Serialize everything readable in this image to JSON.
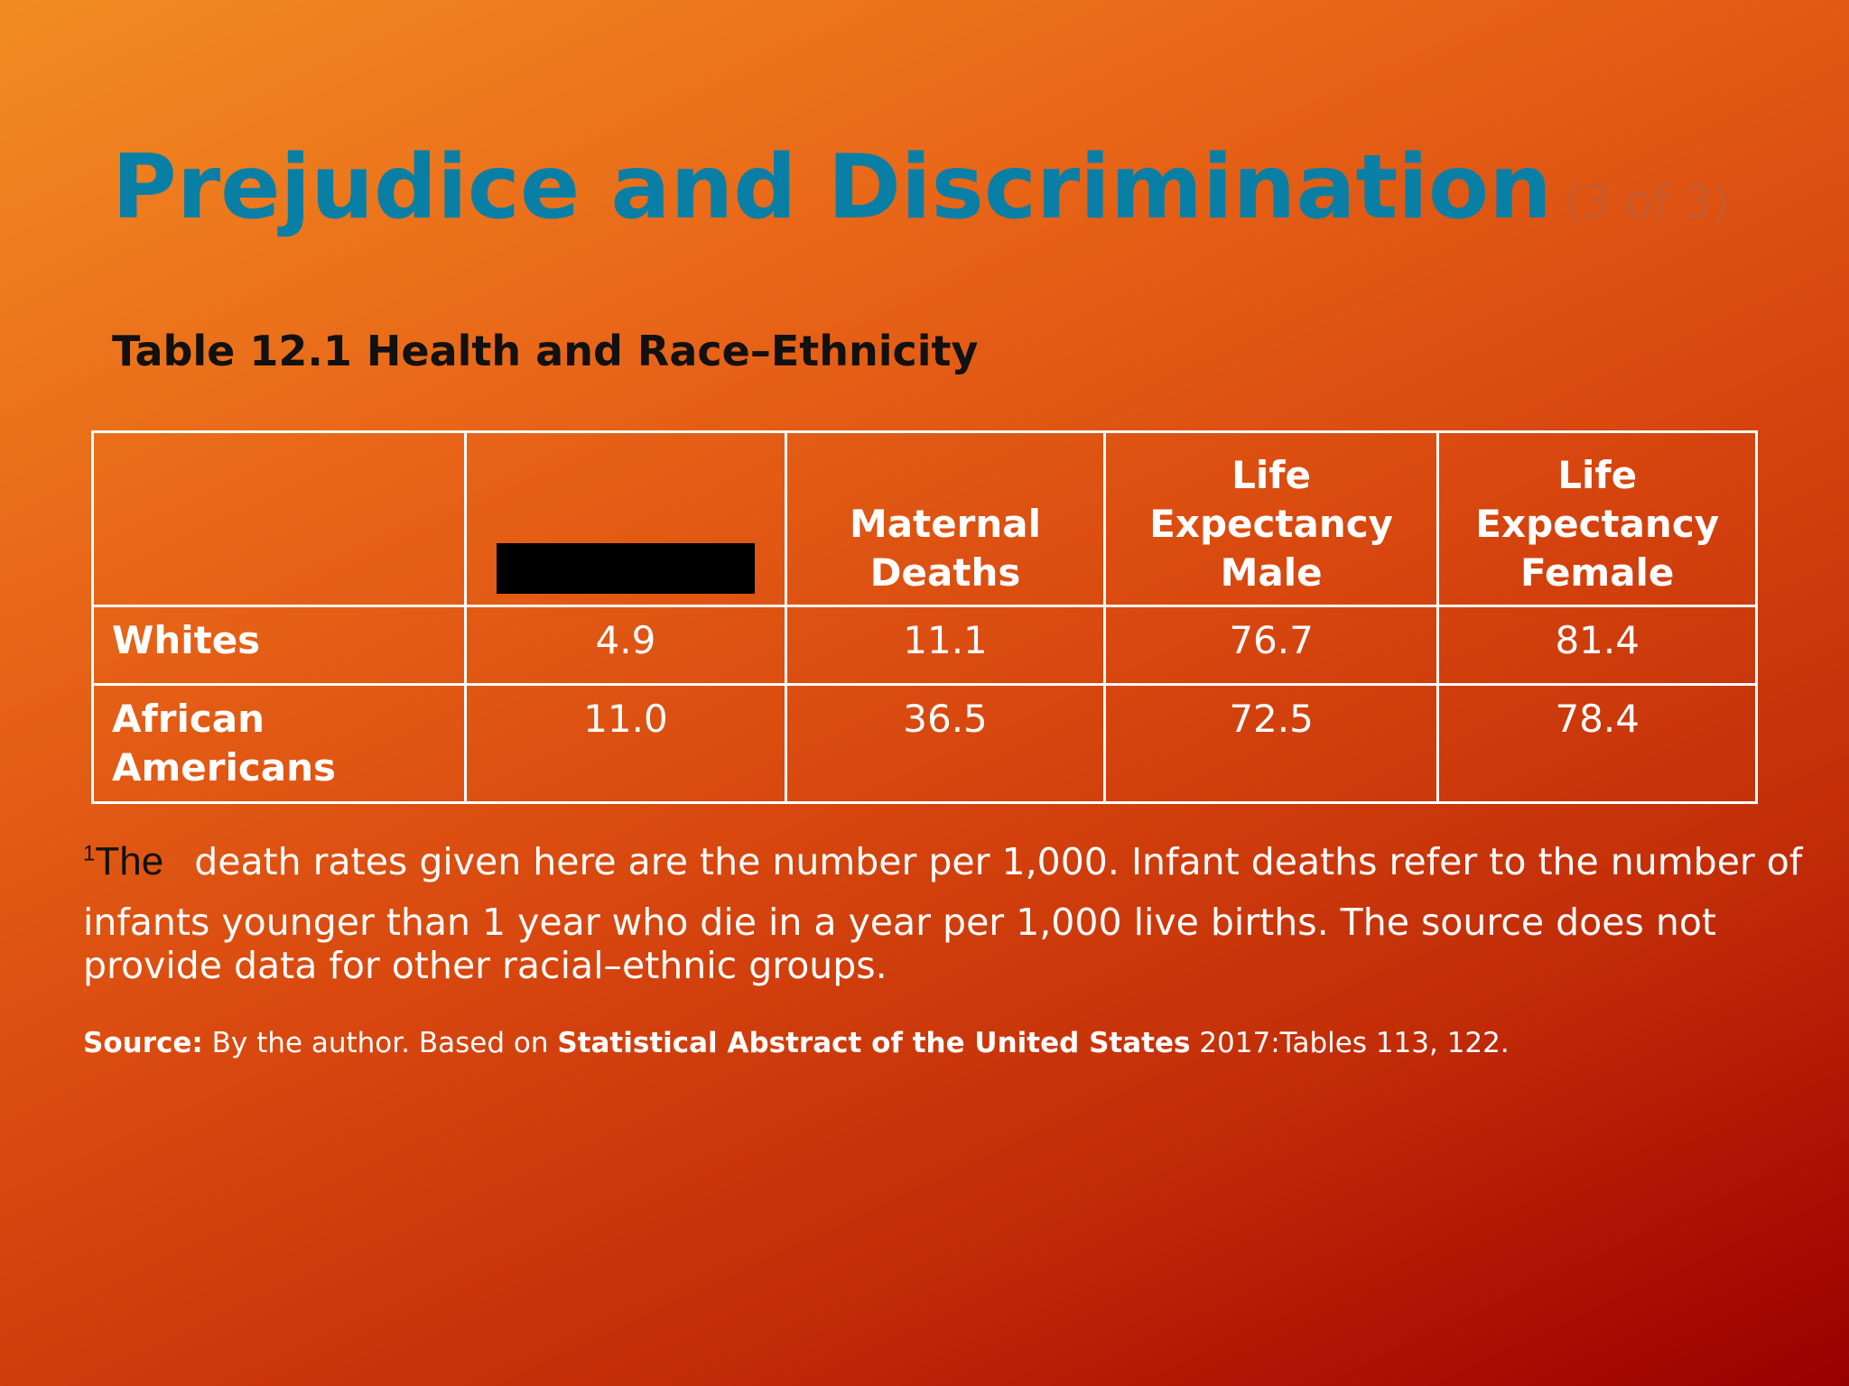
{
  "slide": {
    "title": "Prejudice and Discrimination",
    "subtitle": "(3 of 3)"
  },
  "table": {
    "caption": "Table 12.1 Health and Race–Ethnicity",
    "headers": [
      "",
      "",
      "Maternal Deaths",
      "Life Expectancy Male",
      "Life Expectancy Female"
    ],
    "rows": [
      {
        "label": "Whites",
        "values": [
          "4.9",
          "11.1",
          "76.7",
          "81.4"
        ]
      },
      {
        "label": "African Americans",
        "values": [
          "11.0",
          "36.5",
          "72.5",
          "78.4"
        ]
      }
    ]
  },
  "footnote": {
    "marker_sup": "1",
    "marker_word": "The",
    "line1": "death rates given here are the number per 1,000. Infant deaths refer to the number of",
    "rest": "infants younger than 1 year who die in a year per 1,000 live births. The source does not provide data for other racial–ethnic groups."
  },
  "source": {
    "label": "Source:",
    "text1": "By the author. Based on",
    "publication": "Statistical Abstract of the United States",
    "text2": "2017:Tables 113, 122."
  },
  "colors": {
    "title": "#0a7fa6",
    "subtitle": "#c95a2c",
    "caption": "#111111",
    "table_text": "#ffffff",
    "background_start": "#f28c22",
    "background_end": "#980000"
  }
}
